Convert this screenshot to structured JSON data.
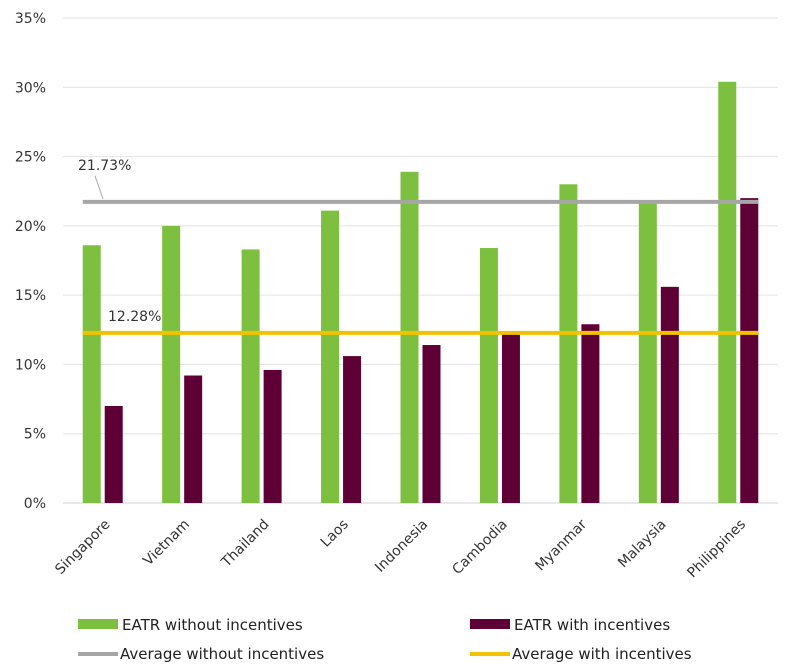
{
  "chart_data": {
    "type": "bar",
    "categories": [
      "Singapore",
      "Vietnam",
      "Thailand",
      "Laos",
      "Indonesia",
      "Cambodia",
      "Myanmar",
      "Malaysia",
      "Philippines"
    ],
    "series": [
      {
        "name": "EATR without incentives",
        "color": "#7dbf3f",
        "values": [
          18.6,
          20.0,
          18.3,
          21.1,
          23.9,
          18.4,
          23.0,
          21.8,
          30.4
        ]
      },
      {
        "name": "EATR with incentives",
        "color": "#5e0036",
        "values": [
          7.0,
          9.2,
          9.6,
          10.6,
          11.4,
          12.3,
          12.9,
          15.6,
          22.0
        ]
      }
    ],
    "reference_lines": [
      {
        "name": "Average without incentives",
        "value": 21.73,
        "label": "21.73%",
        "color": "#a6a6a6"
      },
      {
        "name": "Average with incentives",
        "value": 12.28,
        "label": "12.28%",
        "color": "#f2c200"
      }
    ],
    "y_ticks": [
      "0%",
      "5%",
      "10%",
      "15%",
      "20%",
      "25%",
      "30%",
      "35%"
    ],
    "ylim": [
      0,
      35
    ],
    "grid": true,
    "legend_position": "bottom"
  }
}
